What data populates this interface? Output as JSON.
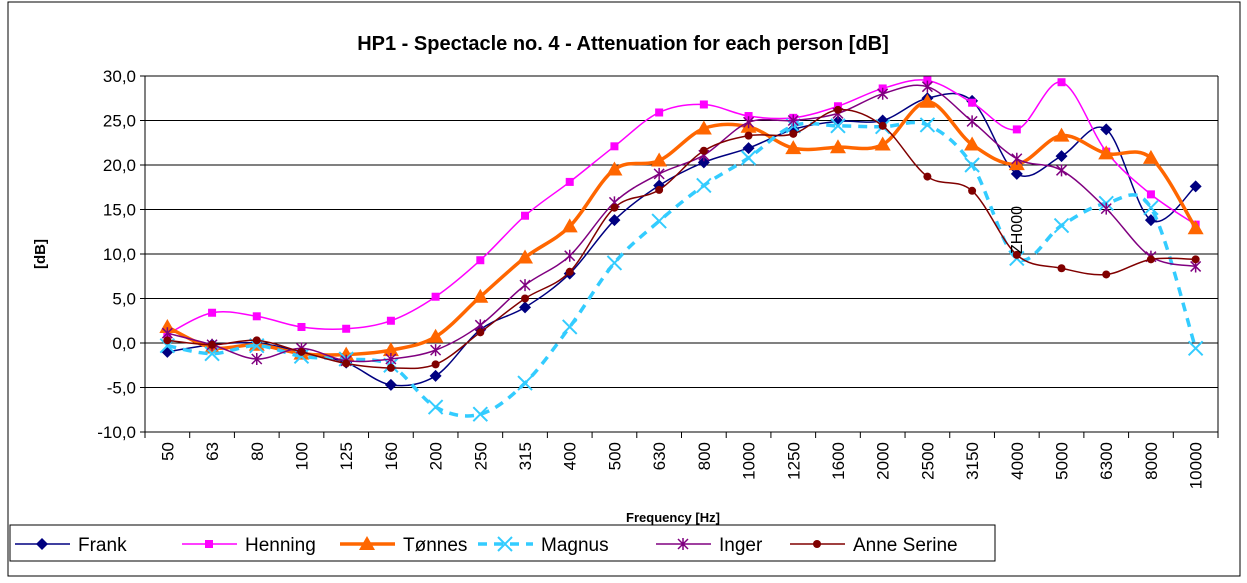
{
  "chart_data": {
    "type": "line",
    "title": "HP1 - Spectacle no. 4 - Attenuation for each person [dB]",
    "x_label": "Frequency [Hz]",
    "y_label": "[dB]",
    "annotation": "ZH000",
    "categories": [
      "50",
      "63",
      "80",
      "100",
      "125",
      "160",
      "200",
      "250",
      "315",
      "400",
      "500",
      "630",
      "800",
      "1000",
      "1250",
      "1600",
      "2000",
      "2500",
      "3150",
      "4000",
      "5000",
      "6300",
      "8000",
      "10000"
    ],
    "ylim": [
      -10,
      30
    ],
    "yticks": [
      {
        "value": -10,
        "label": "-10,0"
      },
      {
        "value": -5,
        "label": "-5,0"
      },
      {
        "value": 0,
        "label": "0,0"
      },
      {
        "value": 5,
        "label": "5,0"
      },
      {
        "value": 10,
        "label": "10,0"
      },
      {
        "value": 15,
        "label": "15,0"
      },
      {
        "value": 20,
        "label": "20,0"
      },
      {
        "value": 25,
        "label": "25,0"
      },
      {
        "value": 30,
        "label": "30,0"
      }
    ],
    "grid": true,
    "legend": "bottom",
    "series": [
      {
        "name": "Frank",
        "color": "#000080",
        "marker": "diamond",
        "dashed": false,
        "values": [
          -1.0,
          -0.2,
          0.0,
          -1.0,
          -2.2,
          -4.7,
          -3.7,
          1.5,
          4.0,
          7.8,
          13.8,
          17.7,
          20.3,
          21.9,
          24.0,
          24.9,
          25.0,
          27.5,
          27.2,
          19.0,
          21.0,
          24.0,
          13.8,
          17.6
        ]
      },
      {
        "name": "Henning",
        "color": "#ff00ff",
        "marker": "square",
        "dashed": false,
        "values": [
          1.0,
          3.4,
          3.0,
          1.8,
          1.6,
          2.5,
          5.2,
          9.3,
          14.3,
          18.1,
          22.1,
          25.9,
          26.8,
          25.5,
          25.3,
          26.6,
          28.6,
          29.5,
          27.0,
          24.0,
          29.3,
          21.5,
          16.7,
          13.3
        ]
      },
      {
        "name": "Tønnes",
        "color": "#ff6600",
        "marker": "triangle",
        "dashed": false,
        "values": [
          1.8,
          -0.5,
          -0.2,
          -1.2,
          -1.3,
          -0.8,
          0.7,
          5.2,
          9.6,
          13.1,
          19.5,
          20.5,
          24.1,
          24.3,
          21.9,
          22.0,
          22.3,
          27.1,
          22.3,
          20.1,
          23.3,
          21.3,
          20.8,
          12.9
        ]
      },
      {
        "name": "Magnus",
        "color": "#33ccff",
        "marker": "x",
        "dashed": true,
        "values": [
          -0.3,
          -1.2,
          -0.3,
          -1.5,
          -1.8,
          -2.5,
          -7.2,
          -8.0,
          -4.5,
          1.8,
          9.0,
          13.7,
          17.7,
          20.8,
          24.4,
          24.4,
          24.3,
          24.5,
          20.0,
          9.5,
          13.2,
          15.7,
          15.2,
          -0.6
        ]
      },
      {
        "name": "Inger",
        "color": "#800080",
        "marker": "star",
        "dashed": false,
        "values": [
          1.1,
          -0.2,
          -1.8,
          -0.6,
          -2.0,
          -1.8,
          -0.8,
          2.0,
          6.5,
          9.8,
          15.8,
          19.0,
          21.1,
          24.8,
          25.0,
          25.8,
          28.0,
          28.8,
          24.9,
          20.7,
          19.4,
          15.1,
          9.7,
          8.6
        ]
      },
      {
        "name": "Anne Serine",
        "color": "#800000",
        "marker": "circle",
        "dashed": false,
        "values": [
          0.3,
          -0.2,
          0.3,
          -1.0,
          -2.3,
          -2.8,
          -2.4,
          1.2,
          5.0,
          8.0,
          15.2,
          17.2,
          21.6,
          23.3,
          23.5,
          26.2,
          24.4,
          18.7,
          17.1,
          9.9,
          8.4,
          7.7,
          9.4,
          9.4
        ]
      }
    ]
  }
}
